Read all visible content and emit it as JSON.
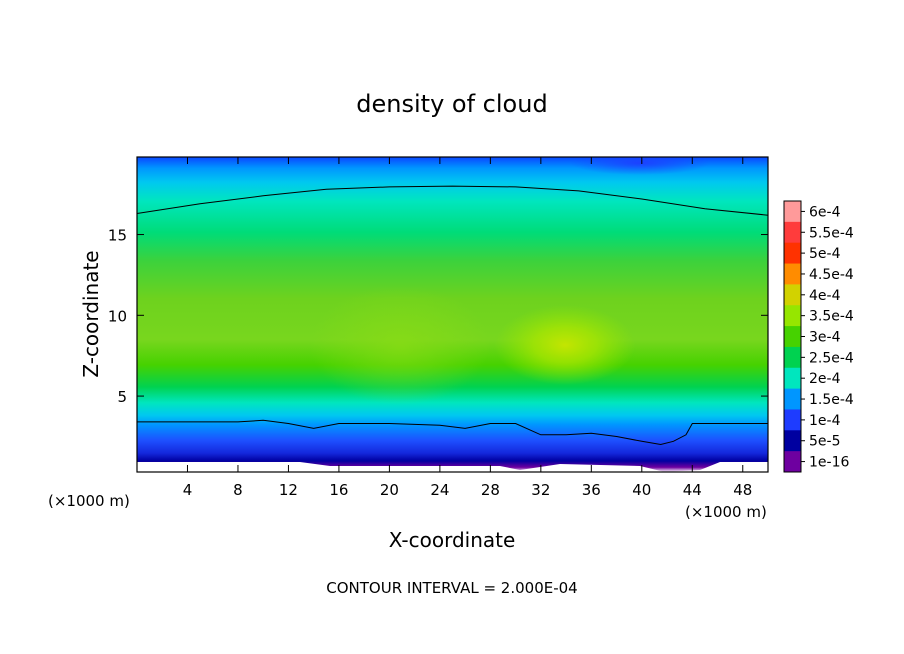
{
  "chart_data": {
    "type": "heatmap",
    "title": "density of cloud",
    "xlabel": "X-coordinate",
    "ylabel": "Z-coordinate",
    "x_unit_label_left": "(×1000 m)",
    "x_unit_label_right": "(×1000 m)",
    "footer": "CONTOUR INTERVAL = 2.000E-04",
    "xlim": [
      0,
      50
    ],
    "ylim": [
      0.3,
      19.8
    ],
    "x_ticks": [
      4,
      8,
      12,
      16,
      20,
      24,
      28,
      32,
      36,
      40,
      44,
      48
    ],
    "y_ticks": [
      5,
      10,
      15
    ],
    "x_tick_labels": [
      "4",
      "8",
      "12",
      "16",
      "20",
      "24",
      "28",
      "32",
      "36",
      "40",
      "44",
      "48"
    ],
    "y_tick_labels": [
      "5",
      "10",
      "15"
    ],
    "grid": false,
    "colorbar": {
      "placement": "right",
      "labels": [
        "6e-4",
        "5.5e-4",
        "5e-4",
        "4.5e-4",
        "4e-4",
        "3.5e-4",
        "3e-4",
        "2.5e-4",
        "2e-4",
        "1.5e-4",
        "1e-4",
        "5e-5",
        "1e-16"
      ],
      "values": [
        0.0006,
        0.00055,
        0.0005,
        0.00045,
        0.0004,
        0.00035,
        0.0003,
        0.00025,
        0.0002,
        0.00015,
        0.0001,
        5e-05,
        1e-16
      ],
      "colors": [
        "#ff9a9a",
        "#ff3c3c",
        "#ff3200",
        "#ff8c00",
        "#d2d200",
        "#96e600",
        "#46d200",
        "#00d250",
        "#00e6be",
        "#0096ff",
        "#1e3cff",
        "#0000a0",
        "#6e00a0"
      ]
    },
    "contour_interval": 0.0002,
    "contour_lines": [
      {
        "level": 0.0002,
        "x": [
          0,
          5,
          10,
          15,
          20,
          25,
          30,
          35,
          40,
          45,
          50
        ],
        "z": [
          16.3,
          16.9,
          17.4,
          17.8,
          17.95,
          18.0,
          17.95,
          17.7,
          17.2,
          16.6,
          16.2
        ]
      },
      {
        "level": 0.0002,
        "x": [
          0,
          4,
          8,
          10,
          12,
          14,
          16,
          20,
          24,
          26,
          28,
          30,
          32,
          34,
          36,
          38,
          40,
          41.5,
          42.5,
          43.5,
          44,
          46,
          48,
          50
        ],
        "z": [
          3.4,
          3.4,
          3.4,
          3.5,
          3.3,
          3.0,
          3.3,
          3.3,
          3.2,
          3.0,
          3.3,
          3.3,
          2.6,
          2.6,
          2.7,
          2.5,
          2.2,
          2.0,
          2.2,
          2.6,
          3.3,
          3.3,
          3.3,
          3.3
        ]
      }
    ]
  }
}
